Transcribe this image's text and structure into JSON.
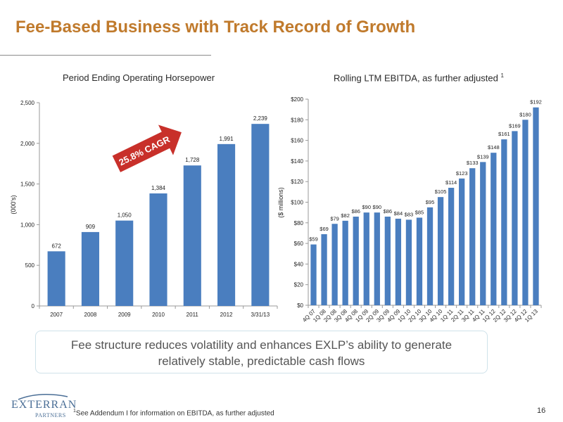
{
  "slide": {
    "title": "Fee-Based Business with Track Record of Growth",
    "callout_line1": "Fee structure reduces volatility and enhances EXLP’s ability to generate",
    "callout_line2": "relatively stable, predictable cash flows",
    "footnote_sup": "1",
    "footnote_text": "See Addendum I for information on EBITDA, as further adjusted",
    "page_number": "16",
    "logo_text": "EXTERRAN",
    "logo_sub": "PARTNERS"
  },
  "colors": {
    "title": "#c07a2c",
    "bar": "#4a7ebf",
    "arrow": "#c8302a",
    "callout_border": "#cfe2ea"
  },
  "chart_data": [
    {
      "type": "bar",
      "title": "Period Ending Operating Horsepower",
      "ylabel": "(000's)",
      "xlabel": "",
      "categories": [
        "2007",
        "2008",
        "2009",
        "2010",
        "2011",
        "2012",
        "3/31/13"
      ],
      "values": [
        672,
        909,
        1050,
        1384,
        1728,
        1991,
        2239
      ],
      "data_labels": [
        "672",
        "909",
        "1,050",
        "1,384",
        "1,728",
        "1,991",
        "2,239"
      ],
      "ylim": [
        0,
        2500
      ],
      "yticks": [
        0,
        500,
        1000,
        1500,
        2000,
        2500
      ],
      "ytick_labels": [
        "0",
        "500",
        "1,000",
        "1,500",
        "2,000",
        "2,500"
      ],
      "grid": false,
      "annotation": "25.8% CAGR"
    },
    {
      "type": "bar",
      "title": "Rolling LTM EBITDA, as further adjusted",
      "title_sup": "1",
      "ylabel": "($ millions)",
      "xlabel": "",
      "categories": [
        "4Q 07",
        "1Q 08",
        "2Q 08",
        "3Q 08",
        "4Q 08",
        "1Q 09",
        "2Q 09",
        "3Q 09",
        "4Q 09",
        "1Q 10",
        "2Q 10",
        "3Q 10",
        "4Q 10",
        "1Q 11",
        "2Q 11",
        "3Q 11",
        "4Q 11",
        "1Q 12",
        "2Q 12",
        "3Q 12",
        "4Q 12",
        "1Q 13"
      ],
      "values": [
        59,
        69,
        79,
        82,
        86,
        90,
        90,
        86,
        84,
        83,
        85,
        95,
        105,
        114,
        123,
        133,
        139,
        148,
        161,
        169,
        180,
        192
      ],
      "data_labels": [
        "$59",
        "$69",
        "$79",
        "$82",
        "$86",
        "$90",
        "$90",
        "$86",
        "$84",
        "$83",
        "$85",
        "$95",
        "$105",
        "$114",
        "$123",
        "$133",
        "$139",
        "$148",
        "$161",
        "$169",
        "$180",
        "$192"
      ],
      "ylim": [
        0,
        200
      ],
      "yticks": [
        0,
        20,
        40,
        60,
        80,
        100,
        120,
        140,
        160,
        180,
        200
      ],
      "ytick_labels": [
        "$0",
        "$20",
        "$40",
        "$60",
        "$80",
        "$100",
        "$120",
        "$140",
        "$160",
        "$180",
        "$200"
      ],
      "grid": false
    }
  ]
}
